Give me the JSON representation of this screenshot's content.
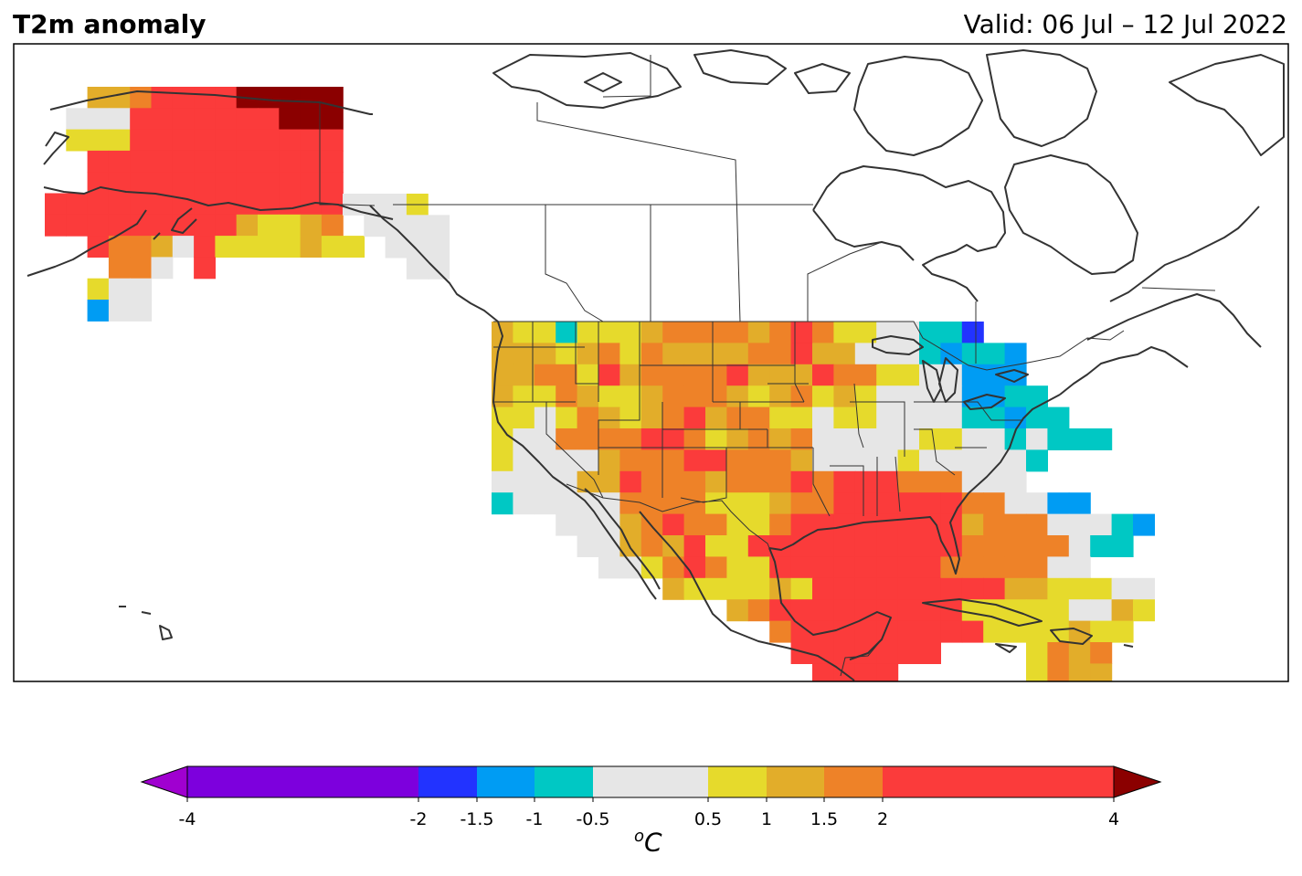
{
  "header": {
    "title": "T2m anomaly",
    "valid": "Valid: 06 Jul – 12 Jul 2022"
  },
  "colorbar": {
    "unit_sup": "o",
    "unit_main": "C",
    "ticks": [
      "-4",
      "-2",
      "-1.5",
      "-1",
      "-0.5",
      "0.5",
      "1",
      "1.5",
      "2",
      "4"
    ],
    "bins": [
      {
        "from": -4,
        "to": -2,
        "color": "#7d00dd"
      },
      {
        "from": -2,
        "to": -1.5,
        "color": "#2233ff"
      },
      {
        "from": -1.5,
        "to": -1,
        "color": "#009cf3"
      },
      {
        "from": -1,
        "to": -0.5,
        "color": "#00c8c4"
      },
      {
        "from": -0.5,
        "to": 0.5,
        "color": "#e6e6e6"
      },
      {
        "from": 0.5,
        "to": 1,
        "color": "#e6da2c"
      },
      {
        "from": 1,
        "to": 1.5,
        "color": "#e2ad2a"
      },
      {
        "from": 1.5,
        "to": 2,
        "color": "#ee8228"
      },
      {
        "from": 2,
        "to": 4,
        "color": "#fb3b3b"
      }
    ],
    "under_color": "#a000d0",
    "over_color": "#8b0000"
  },
  "anomaly_classes": {
    "n": "#2233ff",
    "b": "#009cf3",
    "c": "#00c8c4",
    "g": "#e6e6e6",
    "y": "#e6da2c",
    "o": "#e2ad2a",
    "O": "#ee8228",
    "r": "#fb3b3b",
    "D": "#8b0000"
  },
  "coastline_color": "#333333"
}
